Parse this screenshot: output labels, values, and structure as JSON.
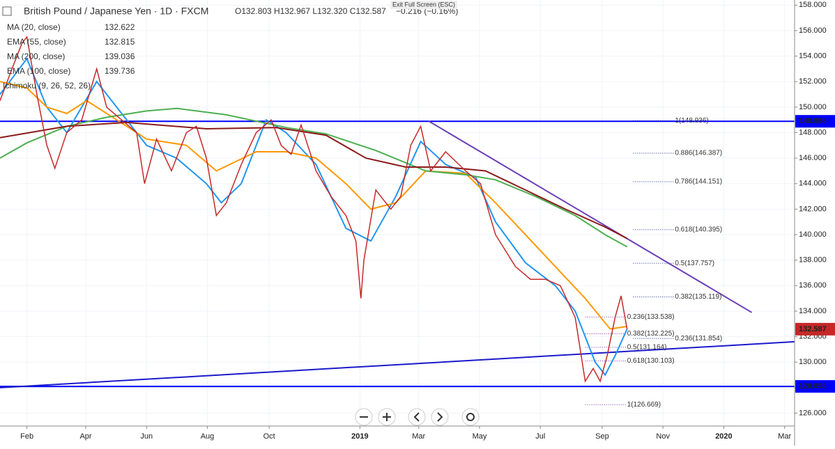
{
  "chart_data": {
    "type": "line",
    "title": "British Pound / Japanese Yen · 1D · FXCM",
    "ohlc": "O132.803 H132.967 L132.320 C132.587",
    "change": "−0.216 (−0.16%)",
    "exit_hint": "Exit Full Screen (ESC)",
    "ichimoku": "Ichimoku (9, 26, 52, 26)",
    "xlim": [
      -27,
      770
    ],
    "ylim": [
      125.1,
      158.4
    ],
    "xticks": [
      {
        "value": 0,
        "label": "Feb"
      },
      {
        "value": 59,
        "label": "Apr"
      },
      {
        "value": 120,
        "label": "Jun"
      },
      {
        "value": 181,
        "label": "Aug"
      },
      {
        "value": 243,
        "label": "Oct"
      },
      {
        "value": 334,
        "label": "2019"
      },
      {
        "value": 393,
        "label": "Mar"
      },
      {
        "value": 454,
        "label": "May"
      },
      {
        "value": 515,
        "label": "Jul"
      },
      {
        "value": 577,
        "label": "Sep"
      },
      {
        "value": 638,
        "label": "Nov"
      },
      {
        "value": 699,
        "label": "2020"
      },
      {
        "value": 760,
        "label": "Mar"
      }
    ],
    "yticks": [
      {
        "value": 126,
        "label": "126.000"
      },
      {
        "value": 128,
        "label": "128.000"
      },
      {
        "value": 130,
        "label": "130.000"
      },
      {
        "value": 132,
        "label": "132.000"
      },
      {
        "value": 134,
        "label": "134.000"
      },
      {
        "value": 136,
        "label": "136.000"
      },
      {
        "value": 138,
        "label": "138.000"
      },
      {
        "value": 140,
        "label": "140.000"
      },
      {
        "value": 142,
        "label": "142.000"
      },
      {
        "value": 144,
        "label": "144.000"
      },
      {
        "value": 146,
        "label": "146.000"
      },
      {
        "value": 148,
        "label": "148.000"
      },
      {
        "value": 150,
        "label": "150.000"
      },
      {
        "value": 152,
        "label": "152.000"
      },
      {
        "value": 154,
        "label": "154.000"
      },
      {
        "value": 156,
        "label": "156.000"
      },
      {
        "value": 158,
        "label": "158.000"
      }
    ],
    "price": {
      "color": "#c62828",
      "x": [
        -27,
        -15,
        -5,
        0,
        10,
        20,
        28,
        40,
        55,
        70,
        80,
        95,
        110,
        118,
        130,
        145,
        160,
        170,
        180,
        190,
        200,
        215,
        230,
        245,
        255,
        265,
        275,
        290,
        305,
        320,
        330,
        335,
        338,
        350,
        365,
        375,
        385,
        395,
        405,
        420,
        440,
        455,
        470,
        490,
        505,
        520,
        535,
        550,
        560,
        568,
        575,
        582,
        590,
        596,
        602
      ],
      "values": [
        150.5,
        153,
        155,
        155.5,
        151,
        147,
        145.2,
        148,
        149,
        153,
        150,
        149,
        148,
        144,
        147.5,
        145,
        148,
        148.5,
        146,
        141.5,
        142.5,
        145.5,
        148,
        149,
        147,
        146.3,
        148.6,
        145,
        143,
        141.5,
        139.5,
        135,
        138,
        143.5,
        142,
        143,
        147,
        148.5,
        145,
        146.5,
        145,
        144,
        140,
        137.5,
        136.5,
        136.5,
        136,
        133.5,
        128.5,
        129.5,
        128.5,
        130.5,
        133.5,
        135.2,
        132.587
      ]
    },
    "last_price": 132.587,
    "series": [
      {
        "name": "MA (20, close)",
        "last": 132.622,
        "color": "#2196f3",
        "x": [
          -27,
          0,
          20,
          40,
          70,
          90,
          120,
          150,
          180,
          195,
          215,
          240,
          260,
          290,
          320,
          345,
          370,
          395,
          420,
          450,
          470,
          500,
          530,
          550,
          570,
          580,
          590,
          602
        ],
        "values": [
          151,
          153.8,
          150,
          148,
          152,
          150,
          147,
          146,
          144,
          142.5,
          144,
          149,
          148,
          145.5,
          140.5,
          139.5,
          143,
          147.3,
          145.5,
          144.5,
          141,
          137.8,
          136,
          134,
          130,
          129,
          130.5,
          132.6
        ]
      },
      {
        "name": "EMA (55, close)",
        "last": 132.815,
        "color": "#ff9800",
        "x": [
          -27,
          0,
          20,
          40,
          60,
          90,
          120,
          160,
          190,
          230,
          260,
          290,
          320,
          345,
          370,
          400,
          440,
          470,
          500,
          530,
          560,
          585,
          602
        ],
        "values": [
          152,
          151.5,
          150,
          149.5,
          150.5,
          149,
          147.5,
          147,
          145,
          146.5,
          146.5,
          146,
          144,
          142,
          142.5,
          145,
          144.8,
          142.5,
          140,
          137.5,
          135,
          132.6,
          132.8
        ]
      },
      {
        "name": "MA (200, close)",
        "last": 139.036,
        "color": "#4caf50",
        "x": [
          -27,
          0,
          40,
          80,
          120,
          150,
          200,
          260,
          300,
          350,
          400,
          440,
          470,
          510,
          550,
          580,
          602
        ],
        "values": [
          146,
          147.2,
          148.5,
          149.2,
          149.7,
          149.9,
          149.4,
          148.4,
          147.9,
          146.6,
          145,
          144.7,
          144.3,
          143,
          141.5,
          140,
          139.04
        ]
      },
      {
        "name": "EMA (100, close)",
        "last": 139.736,
        "color": "#8b1a1a",
        "x": [
          -27,
          40,
          100,
          180,
          250,
          300,
          340,
          380,
          420,
          460,
          500,
          540,
          580,
          602
        ],
        "values": [
          147.6,
          148.5,
          148.8,
          148.3,
          148.4,
          147.8,
          146,
          145.3,
          145.3,
          145,
          143.5,
          142,
          140.6,
          139.7
        ]
      }
    ],
    "levels": [
      {
        "value": 148.888,
        "color": "#0000ff"
      },
      {
        "value": 128.098,
        "color": "#0000ff"
      }
    ],
    "trendlines": [
      {
        "x": [
          -27,
          770
        ],
        "values": [
          128.0,
          131.6
        ],
        "color": "#1a1acc"
      },
      {
        "x": [
          403,
          727
        ],
        "values": [
          148.9,
          133.9
        ],
        "color": "#6a3db8"
      }
    ],
    "fib_a": {
      "color": "#1a237e",
      "x": 650,
      "labels": [
        {
          "value": 148.936,
          "label": "1(148.936)"
        },
        {
          "value": 146.387,
          "label": "0.886(146.387)"
        },
        {
          "value": 144.151,
          "label": "0.786(144.151)"
        },
        {
          "value": 140.395,
          "label": "0.618(140.395)"
        },
        {
          "value": 137.757,
          "label": "0.5(137.757)"
        },
        {
          "value": 135.119,
          "label": "0.382(135.119)"
        },
        {
          "value": 131.854,
          "label": "0.236(131.854)"
        }
      ]
    },
    "fib_b": {
      "color": "#7b1fa2",
      "x": 602,
      "labels": [
        {
          "value": 133.538,
          "label": "0.236(133.538)"
        },
        {
          "value": 132.225,
          "label": "0.382(132.225)"
        },
        {
          "value": 131.164,
          "label": "0.5(131.164)"
        },
        {
          "value": 130.103,
          "label": "0.618(130.103)"
        },
        {
          "value": 126.669,
          "label": "1(126.669)"
        }
      ]
    }
  }
}
